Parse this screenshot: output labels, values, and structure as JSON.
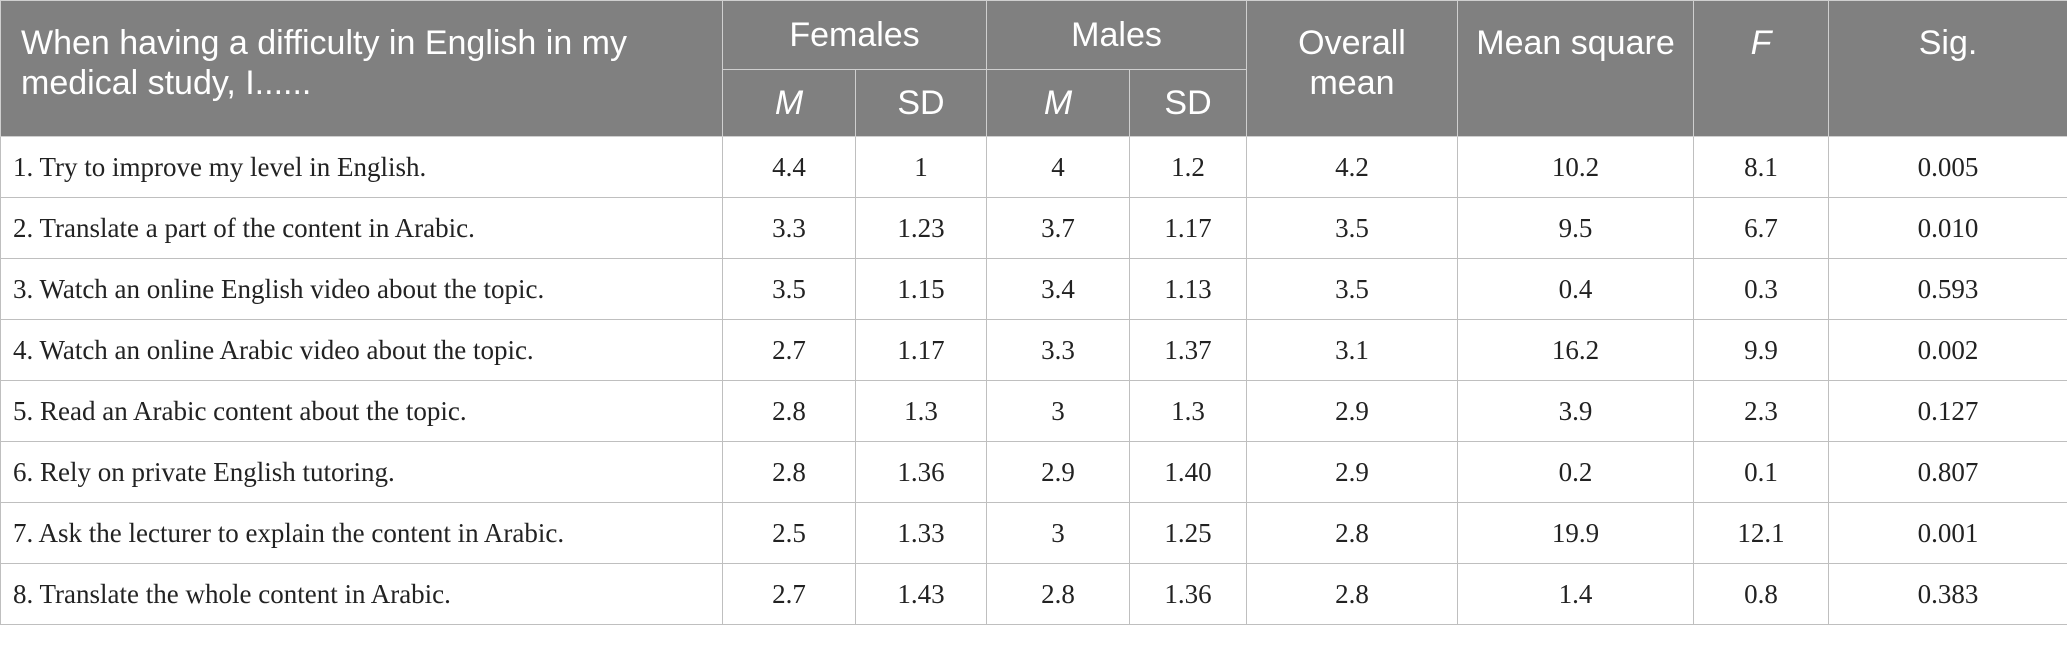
{
  "header": {
    "question": "When having a difficulty in English in my medical study, I......",
    "females": "Females",
    "males": "Males",
    "overall_mean": "Overall mean",
    "mean_square": "Mean square",
    "f": "F",
    "sig": "Sig.",
    "m": "M",
    "sd": "SD"
  },
  "rows": [
    {
      "item": "1. Try to improve my level in English.",
      "f_m": "4.4",
      "f_sd": "1",
      "m_m": "4",
      "m_sd": "1.2",
      "overall": "4.2",
      "ms": "10.2",
      "f": "8.1",
      "sig": "0.005"
    },
    {
      "item": "2. Translate a part of the content in Arabic.",
      "f_m": "3.3",
      "f_sd": "1.23",
      "m_m": "3.7",
      "m_sd": "1.17",
      "overall": "3.5",
      "ms": "9.5",
      "f": "6.7",
      "sig": "0.010"
    },
    {
      "item": "3. Watch an online English video about the topic.",
      "f_m": "3.5",
      "f_sd": "1.15",
      "m_m": "3.4",
      "m_sd": "1.13",
      "overall": "3.5",
      "ms": "0.4",
      "f": "0.3",
      "sig": "0.593"
    },
    {
      "item": "4. Watch an online Arabic video about the topic.",
      "f_m": "2.7",
      "f_sd": "1.17",
      "m_m": "3.3",
      "m_sd": "1.37",
      "overall": "3.1",
      "ms": "16.2",
      "f": "9.9",
      "sig": "0.002"
    },
    {
      "item": "5. Read an Arabic content about the topic.",
      "f_m": "2.8",
      "f_sd": "1.3",
      "m_m": "3",
      "m_sd": "1.3",
      "overall": "2.9",
      "ms": "3.9",
      "f": "2.3",
      "sig": "0.127"
    },
    {
      "item": "6. Rely on private English tutoring.",
      "f_m": "2.8",
      "f_sd": "1.36",
      "m_m": "2.9",
      "m_sd": "1.40",
      "overall": "2.9",
      "ms": "0.2",
      "f": "0.1",
      "sig": "0.807"
    },
    {
      "item": "7. Ask the lecturer to explain the content in Arabic.",
      "f_m": "2.5",
      "f_sd": "1.33",
      "m_m": "3",
      "m_sd": "1.25",
      "overall": "2.8",
      "ms": "19.9",
      "f": "12.1",
      "sig": "0.001"
    },
    {
      "item": "8. Translate the whole content in Arabic.",
      "f_m": "2.7",
      "f_sd": "1.43",
      "m_m": "2.8",
      "m_sd": "1.36",
      "overall": "2.8",
      "ms": "1.4",
      "f": "0.8",
      "sig": "0.383"
    }
  ]
}
